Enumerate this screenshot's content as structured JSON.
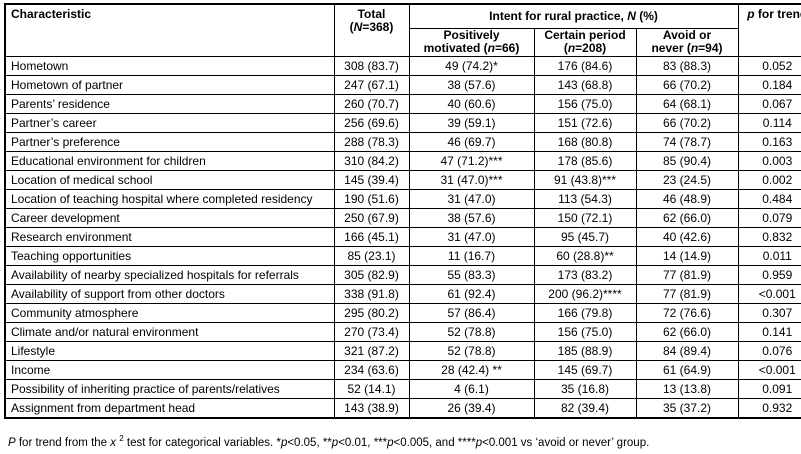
{
  "table": {
    "header": {
      "characteristic": "Characteristic",
      "total": {
        "line1": "Total",
        "pre": "(",
        "n": "N",
        "post": "=368)"
      },
      "intent": {
        "pre": "Intent for rural practice, ",
        "n": "N",
        "post": " (%)"
      },
      "sub": {
        "positively": {
          "line1": "Positively",
          "pre": "motivated (",
          "n": "n",
          "post": "=66)"
        },
        "certain": {
          "line1": "Certain period",
          "pre": "(",
          "n": "n",
          "post": "=208)"
        },
        "avoid": {
          "line1": "Avoid or",
          "pre": "never (",
          "n": "n",
          "post": "=94)"
        }
      },
      "p_trend": {
        "p": "p",
        "rest": " for trend"
      }
    },
    "rows": [
      [
        "Hometown",
        "308 (83.7)",
        "49 (74.2)*",
        "176 (84.6)",
        "83 (88.3)",
        "0.052"
      ],
      [
        "Hometown of partner",
        "247 (67.1)",
        "38 (57.6)",
        "143 (68.8)",
        "66 (70.2)",
        "0.184"
      ],
      [
        "Parents’ residence",
        "260 (70.7)",
        "40 (60.6)",
        "156 (75.0)",
        "64 (68.1)",
        "0.067"
      ],
      [
        "Partner’s career",
        "256 (69.6)",
        "39 (59.1)",
        "151 (72.6)",
        "66 (70.2)",
        "0.114"
      ],
      [
        "Partner’s preference",
        "288 (78.3)",
        "46 (69.7)",
        "168 (80.8)",
        "74 (78.7)",
        "0.163"
      ],
      [
        "Educational environment for children",
        "310 (84.2)",
        "47 (71.2)***",
        "178 (85.6)",
        "85 (90.4)",
        "0.003"
      ],
      [
        "Location of medical school",
        "145 (39.4)",
        "31 (47.0)***",
        "91 (43.8)***",
        "23 (24.5)",
        "0.002"
      ],
      [
        "Location of teaching hospital where completed residency",
        "190 (51.6)",
        "31 (47.0)",
        "113 (54.3)",
        "46 (48.9)",
        "0.484"
      ],
      [
        "Career development",
        "250 (67.9)",
        "38 (57.6)",
        "150 (72.1)",
        "62 (66.0)",
        "0.079"
      ],
      [
        "Research environment",
        "166 (45.1)",
        "31 (47.0)",
        "95 (45.7)",
        "40 (42.6)",
        "0.832"
      ],
      [
        "Teaching opportunities",
        "85 (23.1)",
        "11 (16.7)",
        "60 (28.8)**",
        "14 (14.9)",
        "0.011"
      ],
      [
        "Availability of nearby specialized hospitals for referrals",
        "305 (82.9)",
        "55 (83.3)",
        "173 (83.2)",
        "77 (81.9)",
        "0.959"
      ],
      [
        "Availability of support from other doctors",
        "338 (91.8)",
        "61 (92.4)",
        "200 (96.2)****",
        "77 (81.9)",
        "<0.001"
      ],
      [
        "Community atmosphere",
        "295 (80.2)",
        "57 (86.4)",
        "166 (79.8)",
        "72 (76.6)",
        "0.307"
      ],
      [
        "Climate and/or natural environment",
        "270 (73.4)",
        "52 (78.8)",
        "156 (75.0)",
        "62 (66.0)",
        "0.141"
      ],
      [
        "Lifestyle",
        "321 (87.2)",
        "52 (78.8)",
        "185 (88.9)",
        "84 (89.4)",
        "0.076"
      ],
      [
        "Income",
        "234 (63.6)",
        "28 (42.4) **",
        "145 (69.7)",
        "61 (64.9)",
        "<0.001"
      ],
      [
        "Possibility of inheriting practice of parents/relatives",
        "52 (14.1)",
        "4 (6.1)",
        "35 (16.8)",
        "13 (13.8)",
        "0.091"
      ],
      [
        "Assignment from department head",
        "143 (38.9)",
        "26 (39.4)",
        "82 (39.4)",
        "35 (37.2)",
        "0.932"
      ]
    ],
    "footnote_segments": [
      {
        "t": "P",
        "s": "i"
      },
      {
        "t": " for trend from the ",
        "s": ""
      },
      {
        "t": "x",
        "s": "i"
      },
      {
        "t": " ",
        "s": ""
      },
      {
        "t": "2",
        "s": "sup"
      },
      {
        "t": " test for categorical variables. *",
        "s": ""
      },
      {
        "t": "p",
        "s": "i"
      },
      {
        "t": "<0.05, **",
        "s": ""
      },
      {
        "t": "p",
        "s": "i"
      },
      {
        "t": "<0.01, ***",
        "s": ""
      },
      {
        "t": "p",
        "s": "i"
      },
      {
        "t": "<0.005, and ****",
        "s": ""
      },
      {
        "t": "p",
        "s": "i"
      },
      {
        "t": "<0.001 vs ‘avoid or never’ group.",
        "s": ""
      }
    ]
  }
}
